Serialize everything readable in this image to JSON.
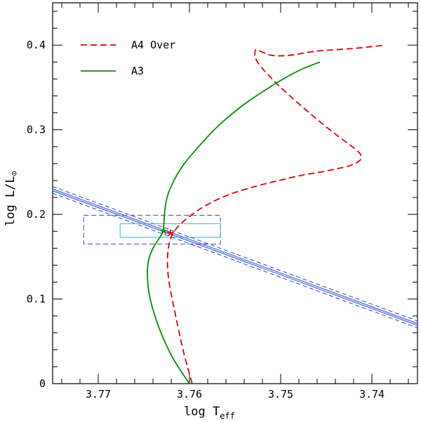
{
  "chart_data": {
    "type": "line",
    "title": "",
    "xlabel": {
      "main": "log T",
      "sub": "eff"
    },
    "ylabel": {
      "main": "log L/L",
      "sub": "⊙"
    },
    "xlim": [
      3.775,
      3.735
    ],
    "ylim": [
      0.0,
      0.45
    ],
    "xticks": [
      {
        "value": 3.77,
        "label": "3.77"
      },
      {
        "value": 3.76,
        "label": "3.76"
      },
      {
        "value": 3.75,
        "label": "3.75"
      },
      {
        "value": 3.74,
        "label": "3.74"
      }
    ],
    "yticks": [
      {
        "value": 0.0,
        "label": "0"
      },
      {
        "value": 0.1,
        "label": "0.1"
      },
      {
        "value": 0.2,
        "label": "0.2"
      },
      {
        "value": 0.3,
        "label": "0.3"
      },
      {
        "value": 0.4,
        "label": "0.4"
      }
    ],
    "series": [
      {
        "name": "A4 Over",
        "color": "#e00000",
        "style": "dashed",
        "x": [
          3.7597,
          3.7607,
          3.7617,
          3.7623,
          3.7624,
          3.7621,
          3.7613,
          3.7597,
          3.7578,
          3.7555,
          3.7528,
          3.7502,
          3.7478,
          3.7456,
          3.7438,
          3.7423,
          3.7413,
          3.7412,
          3.7418,
          3.7434,
          3.7452,
          3.7475,
          3.75,
          3.7518,
          3.7527,
          3.7528,
          3.7525,
          3.751,
          3.749,
          3.746,
          3.742,
          3.7385
        ],
        "y": [
          0.0,
          0.04,
          0.09,
          0.125,
          0.15,
          0.17,
          0.185,
          0.2,
          0.213,
          0.224,
          0.233,
          0.24,
          0.246,
          0.25,
          0.254,
          0.258,
          0.264,
          0.27,
          0.277,
          0.29,
          0.305,
          0.326,
          0.35,
          0.37,
          0.383,
          0.393,
          0.394,
          0.388,
          0.388,
          0.393,
          0.396,
          0.4
        ]
      },
      {
        "name": "A3",
        "color": "#009000",
        "style": "solid",
        "x": [
          3.76,
          3.7618,
          3.7633,
          3.7643,
          3.7646,
          3.7645,
          3.764,
          3.7633,
          3.7629,
          3.7628,
          3.7627,
          3.7624,
          3.7617,
          3.7607,
          3.759,
          3.7568,
          3.754,
          3.7505,
          3.748,
          3.7457
        ],
        "y": [
          0.0,
          0.03,
          0.065,
          0.1,
          0.125,
          0.145,
          0.16,
          0.172,
          0.18,
          0.19,
          0.205,
          0.222,
          0.24,
          0.258,
          0.28,
          0.305,
          0.33,
          0.355,
          0.37,
          0.38
        ]
      }
    ],
    "markers": [
      {
        "name": "A4 Over model point",
        "x": 3.7621,
        "y": 0.178,
        "color": "#e00000"
      },
      {
        "name": "A3 model point",
        "x": 3.7628,
        "y": 0.18,
        "color": "#009000"
      }
    ],
    "constraint_band": {
      "color_center": "#87ceeb",
      "color_bounds": "#3a3ad0",
      "center": {
        "x0": 3.775,
        "y0": 0.229,
        "x1": 3.735,
        "y1": 0.07
      },
      "upper": {
        "x0": 3.775,
        "y0": 0.233,
        "x1": 3.735,
        "y1": 0.074
      },
      "lower": {
        "x0": 3.775,
        "y0": 0.225,
        "x1": 3.735,
        "y1": 0.066
      }
    },
    "error_boxes": [
      {
        "name": "outer box",
        "x_range": [
          3.7716,
          3.7566
        ],
        "y_range": [
          0.165,
          0.199
        ],
        "color": "#4040d0",
        "style": "dashed"
      },
      {
        "name": "inner box",
        "x_range": [
          3.7676,
          3.7566
        ],
        "y_range": [
          0.173,
          0.189
        ],
        "color": "#40b0e0",
        "style": "solid"
      }
    ],
    "legend": {
      "position": "top-left",
      "entries": [
        "A4 Over",
        "A3"
      ]
    }
  }
}
